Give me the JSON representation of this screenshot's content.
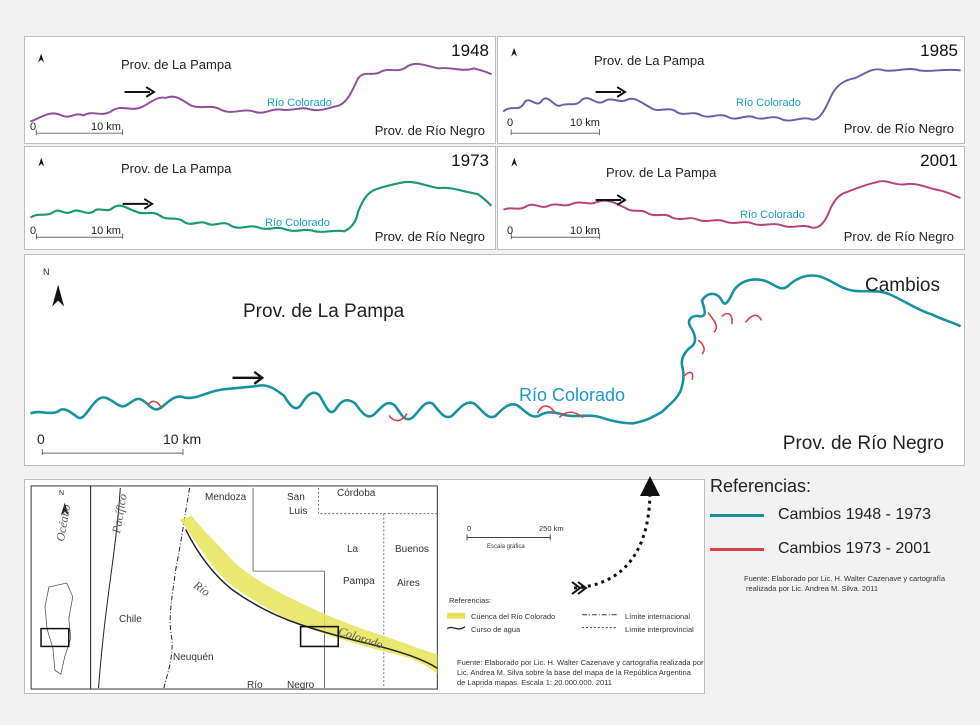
{
  "panels": {
    "p1948": {
      "year": "1948",
      "prov_north": "Prov. de La Pampa",
      "prov_south": "Prov. de Río Negro",
      "river": "Río Colorado",
      "scale": "10 km",
      "scale_zero": "0",
      "line_color": "#8d4f9a"
    },
    "p1985": {
      "year": "1985",
      "prov_north": "Prov. de La Pampa",
      "prov_south": "Prov. de Río Negro",
      "river": "Río Colorado",
      "scale": "10 km",
      "scale_zero": "0",
      "line_color": "#6a5fa6"
    },
    "p1973": {
      "year": "1973",
      "prov_north": "Prov. de La Pampa",
      "prov_south": "Prov. de Río Negro",
      "river": "Río Colorado",
      "scale": "10 km",
      "scale_zero": "0",
      "line_color": "#1a9a6c"
    },
    "p2001": {
      "year": "2001",
      "prov_north": "Prov. de La Pampa",
      "prov_south": "Prov. de Río Negro",
      "river": "Río Colorado",
      "scale": "10 km",
      "scale_zero": "0",
      "line_color": "#b8417a"
    }
  },
  "main": {
    "title": "Cambios",
    "prov_north": "Prov. de La Pampa",
    "prov_south": "Prov. de Río Negro",
    "river": "Río Colorado",
    "scale": "10 km",
    "scale_zero": "0",
    "north": "N"
  },
  "location_map": {
    "ocean": "Océano",
    "pacific": "Pacífico",
    "north": "N",
    "provinces": [
      "Mendoza",
      "San",
      "Luis",
      "Córdoba",
      "La",
      "Pampa",
      "Buenos",
      "Aires",
      "Chile",
      "Neuquén",
      "Río",
      "Negro"
    ],
    "river_words": [
      "Río",
      "Colorado"
    ],
    "scale_zero": "0",
    "scale_km": "250 km",
    "scale_caption": "Escala gráfica",
    "refs_title": "Referencias:",
    "refs": [
      "Cuenca del Río Colorado",
      "Curso de agua",
      "Límite internacional",
      "Límite interprovincial"
    ],
    "source": [
      "Fuente: Elaborado por Lic. H. Walter Cazenave y cartografía realizada por",
      "Lic. Andrea M. Silva sobre la base del mapa de la República Argentina",
      "de Laprida mapas. Escala 1: 20.000.000. 2011"
    ]
  },
  "legend": {
    "title": "Referencias:",
    "items": [
      {
        "label": "Cambios 1948 - 1973",
        "color": "#17919e"
      },
      {
        "label": "Cambios 1973 - 2001",
        "color": "#d9404a"
      }
    ],
    "source": [
      "Fuente: Elaborado por Lic. H. Walter Cazenave y cartografía",
      "realizada por  Lic. Andrea M. Silva. 2011"
    ]
  },
  "colors": {
    "river_main": "#17919e",
    "changes": "#d9404a",
    "basin": "#e6e35a"
  }
}
